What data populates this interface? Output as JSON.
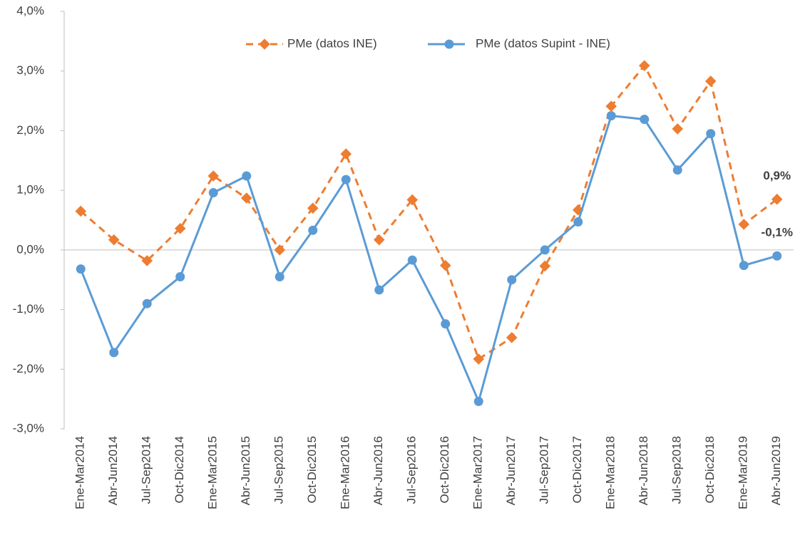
{
  "chart_data": {
    "type": "line",
    "categories": [
      "Ene-Mar2014",
      "Abr-Jun2014",
      "Jul-Sep2014",
      "Oct-Dic2014",
      "Ene-Mar2015",
      "Abr-Jun2015",
      "Jul-Sep2015",
      "Oct-Dic2015",
      "Ene-Mar2016",
      "Abr-Jun2016",
      "Jul-Sep2016",
      "Oct-Dic2016",
      "Ene-Mar2017",
      "Abr-Jun2017",
      "Jul-Sep2017",
      "Oct-Dic2017",
      "Ene-Mar2018",
      "Abr-Jun2018",
      "Jul-Sep2018",
      "Oct-Dic2018",
      "Ene-Mar2019",
      "Abr-Jun2019"
    ],
    "series": [
      {
        "name": "PMe (datos INE)",
        "color": "#ed7d31",
        "dashed": true,
        "marker": "diamond",
        "values": [
          0.65,
          0.17,
          -0.18,
          0.36,
          1.24,
          0.87,
          0.0,
          0.7,
          1.61,
          0.17,
          0.84,
          -0.26,
          -1.83,
          -1.47,
          -0.27,
          0.67,
          2.41,
          3.09,
          2.03,
          2.83,
          0.43,
          0.85
        ],
        "value_labels": [
          null,
          null,
          null,
          null,
          null,
          null,
          null,
          null,
          null,
          null,
          null,
          null,
          null,
          null,
          null,
          null,
          null,
          null,
          null,
          null,
          null,
          "0,9%"
        ]
      },
      {
        "name": "PMe (datos Supint - INE)",
        "color": "#5b9bd5",
        "dashed": false,
        "marker": "circle",
        "values": [
          -0.32,
          -1.72,
          -0.9,
          -0.45,
          0.96,
          1.24,
          -0.45,
          0.33,
          1.18,
          -0.67,
          -0.17,
          -1.24,
          -2.54,
          -0.5,
          0.0,
          0.47,
          2.25,
          2.19,
          1.34,
          1.95,
          -0.26,
          -0.1
        ],
        "value_labels": [
          null,
          null,
          null,
          null,
          null,
          null,
          null,
          null,
          null,
          null,
          null,
          null,
          null,
          null,
          null,
          null,
          null,
          null,
          null,
          null,
          null,
          "-0,1%"
        ]
      }
    ],
    "ylim": [
      -3,
      4
    ],
    "yticks": [
      {
        "value": -3,
        "label": "-3,0%"
      },
      {
        "value": -2,
        "label": "-2,0%"
      },
      {
        "value": -1,
        "label": "-1,0%"
      },
      {
        "value": 0,
        "label": "0,0%"
      },
      {
        "value": 1,
        "label": "1,0%"
      },
      {
        "value": 2,
        "label": "2,0%"
      },
      {
        "value": 3,
        "label": "3,0%"
      },
      {
        "value": 4,
        "label": "4,0%"
      }
    ],
    "grid": false,
    "legend": "top"
  }
}
